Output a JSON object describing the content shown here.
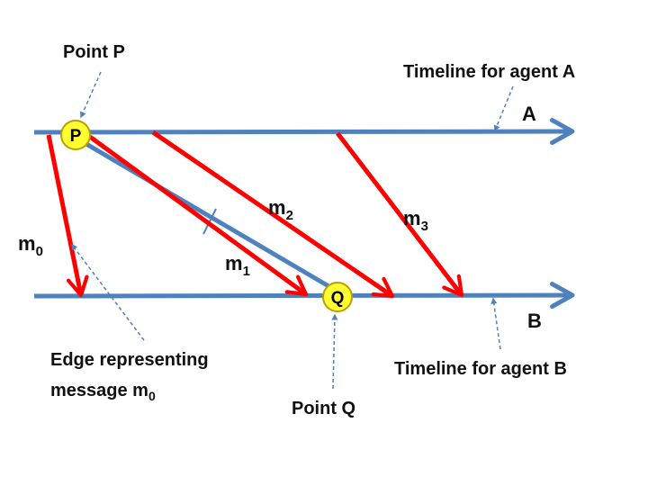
{
  "labels": {
    "point_p": "Point P",
    "point_q": "Point Q",
    "timeline_a": "Timeline for agent A",
    "timeline_b": "Timeline for agent B",
    "agent_a": "A",
    "agent_b": "B",
    "edge_line1": "Edge representing",
    "edge_line2_prefix": "message m",
    "edge_line2_sub": "0"
  },
  "nodes": {
    "p": "P",
    "q": "Q"
  },
  "messages": [
    {
      "base": "m",
      "sub": "0"
    },
    {
      "base": "m",
      "sub": "1"
    },
    {
      "base": "m",
      "sub": "2"
    },
    {
      "base": "m",
      "sub": "3"
    }
  ],
  "colors": {
    "timeline": "#4f81bd",
    "message": "#ff0000",
    "node_fill": "#ffff33",
    "node_stroke": "#b8a000",
    "annotation": "#4f81bd"
  }
}
